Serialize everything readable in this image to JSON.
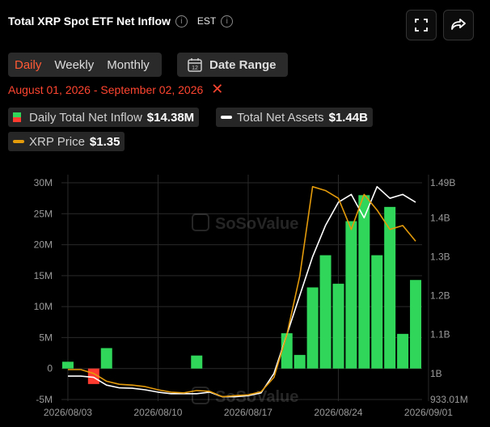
{
  "header": {
    "title": "Total XRP Spot ETF Net Inflow",
    "timezone": "EST",
    "info_glyph": "i"
  },
  "tabs": [
    {
      "label": "Daily",
      "active": true
    },
    {
      "label": "Weekly",
      "active": false
    },
    {
      "label": "Monthly",
      "active": false
    }
  ],
  "date_range_button": {
    "label": "Date Range",
    "calendar_day": "12"
  },
  "date_range": "August 01, 2026 - September 02, 2026",
  "legend": {
    "inflow_label": "Daily Total Net Inflow",
    "inflow_value": "$14.38M",
    "assets_label": "Total Net Assets",
    "assets_value": "$1.44B",
    "price_label": "XRP Price",
    "price_value": "$1.35"
  },
  "watermark": "SoSoValue",
  "colors": {
    "positive_bar": "#2fd65a",
    "negative_bar": "#ff3b30",
    "assets_line": "#ffffff",
    "price_line": "#e39a0b",
    "accent": "#ff5a36"
  },
  "chart_data": {
    "type": "bar",
    "x_tick_labels": [
      "2026/08/03",
      "2026/08/10",
      "2026/08/17",
      "2026/08/24",
      "2026/09/01"
    ],
    "left_axis": {
      "ticks": [
        "30M",
        "25M",
        "20M",
        "15M",
        "10M",
        "5M",
        "0",
        "-5M"
      ],
      "ylim": [
        -5,
        30
      ],
      "unit": "M"
    },
    "right_axis": {
      "ticks": [
        "1.49B",
        "1.4B",
        "1.3B",
        "1.2B",
        "1.1B",
        "1B",
        "933.01M"
      ],
      "ylim": [
        0.93301,
        1.49
      ]
    },
    "bars": [
      {
        "day": 0,
        "value": 1.1
      },
      {
        "day": 2,
        "value": -2.5
      },
      {
        "day": 3,
        "value": 3.3
      },
      {
        "day": 10,
        "value": 2.1
      },
      {
        "day": 17,
        "value": 5.7
      },
      {
        "day": 18,
        "value": 2.2
      },
      {
        "day": 19,
        "value": 13.1
      },
      {
        "day": 20,
        "value": 18.3
      },
      {
        "day": 21,
        "value": 13.7
      },
      {
        "day": 22,
        "value": 23.8
      },
      {
        "day": 23,
        "value": 28.0
      },
      {
        "day": 24,
        "value": 18.3
      },
      {
        "day": 25,
        "value": 26.1
      },
      {
        "day": 26,
        "value": 5.6
      },
      {
        "day": 27,
        "value": 14.3
      }
    ],
    "series": [
      {
        "name": "Total Net Assets",
        "axis": "right",
        "points": [
          [
            0,
            0.993
          ],
          [
            1,
            0.993
          ],
          [
            2,
            0.99
          ],
          [
            3,
            0.97
          ],
          [
            4,
            0.963
          ],
          [
            5,
            0.962
          ],
          [
            6,
            0.958
          ],
          [
            7,
            0.952
          ],
          [
            8,
            0.948
          ],
          [
            9,
            0.948
          ],
          [
            10,
            0.948
          ],
          [
            11,
            0.952
          ],
          [
            12,
            0.94
          ],
          [
            13,
            0.94
          ],
          [
            14,
            0.943
          ],
          [
            15,
            0.95
          ],
          [
            16,
            1.0
          ],
          [
            17,
            1.1
          ],
          [
            18,
            1.2
          ],
          [
            19,
            1.3
          ],
          [
            20,
            1.38
          ],
          [
            21,
            1.44
          ],
          [
            22,
            1.46
          ],
          [
            23,
            1.4
          ],
          [
            24,
            1.48
          ],
          [
            25,
            1.45
          ],
          [
            26,
            1.46
          ],
          [
            27,
            1.44
          ]
        ]
      },
      {
        "name": "XRP Price",
        "axis": "right",
        "points": [
          [
            0,
            1.01
          ],
          [
            1,
            1.01
          ],
          [
            2,
            1.0
          ],
          [
            3,
            0.98
          ],
          [
            4,
            0.972
          ],
          [
            5,
            0.97
          ],
          [
            6,
            0.966
          ],
          [
            7,
            0.958
          ],
          [
            8,
            0.952
          ],
          [
            9,
            0.95
          ],
          [
            10,
            0.956
          ],
          [
            11,
            0.954
          ],
          [
            12,
            0.94
          ],
          [
            13,
            0.943
          ],
          [
            14,
            0.945
          ],
          [
            15,
            0.953
          ],
          [
            16,
            0.99
          ],
          [
            17,
            1.1
          ],
          [
            18,
            1.25
          ],
          [
            19,
            1.48
          ],
          [
            20,
            1.47
          ],
          [
            21,
            1.45
          ],
          [
            22,
            1.37
          ],
          [
            23,
            1.46
          ],
          [
            24,
            1.42
          ],
          [
            25,
            1.37
          ],
          [
            26,
            1.38
          ],
          [
            27,
            1.34
          ]
        ]
      }
    ]
  }
}
